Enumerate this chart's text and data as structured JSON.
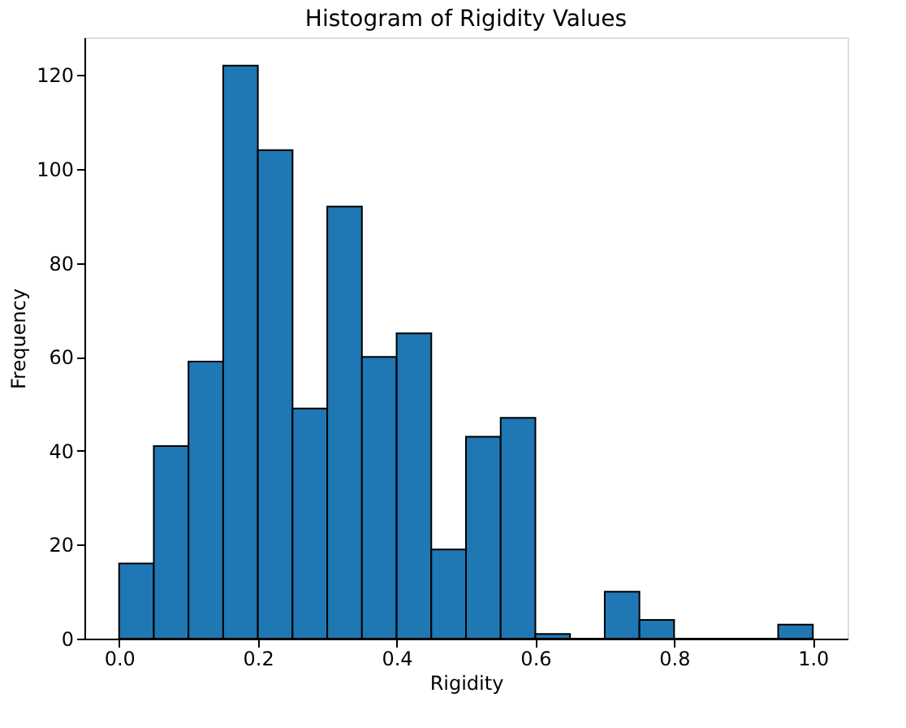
{
  "chart_data": {
    "type": "histogram",
    "title": "Histogram of Rigidity Values",
    "xlabel": "Rigidity",
    "ylabel": "Frequency",
    "bins": [
      0.0,
      0.05,
      0.1,
      0.15,
      0.2,
      0.25,
      0.3,
      0.35,
      0.4,
      0.45,
      0.5,
      0.55,
      0.6,
      0.65,
      0.7,
      0.75,
      0.8,
      0.85,
      0.9,
      0.95,
      1.0
    ],
    "values": [
      16,
      41,
      59,
      122,
      104,
      49,
      92,
      60,
      65,
      19,
      43,
      47,
      1,
      0,
      10,
      4,
      0,
      0,
      0,
      3
    ],
    "color": "#1f77b4",
    "xlim": [
      -0.05,
      1.05
    ],
    "ylim": [
      0,
      128
    ],
    "xticks": [
      {
        "value": 0,
        "label": "0.0"
      },
      0.2,
      0.4,
      0.6,
      0.8,
      {
        "value": 1,
        "label": "1.0"
      }
    ],
    "yticks": [
      0,
      20,
      40,
      60,
      80,
      100,
      120
    ],
    "grid": false
  }
}
